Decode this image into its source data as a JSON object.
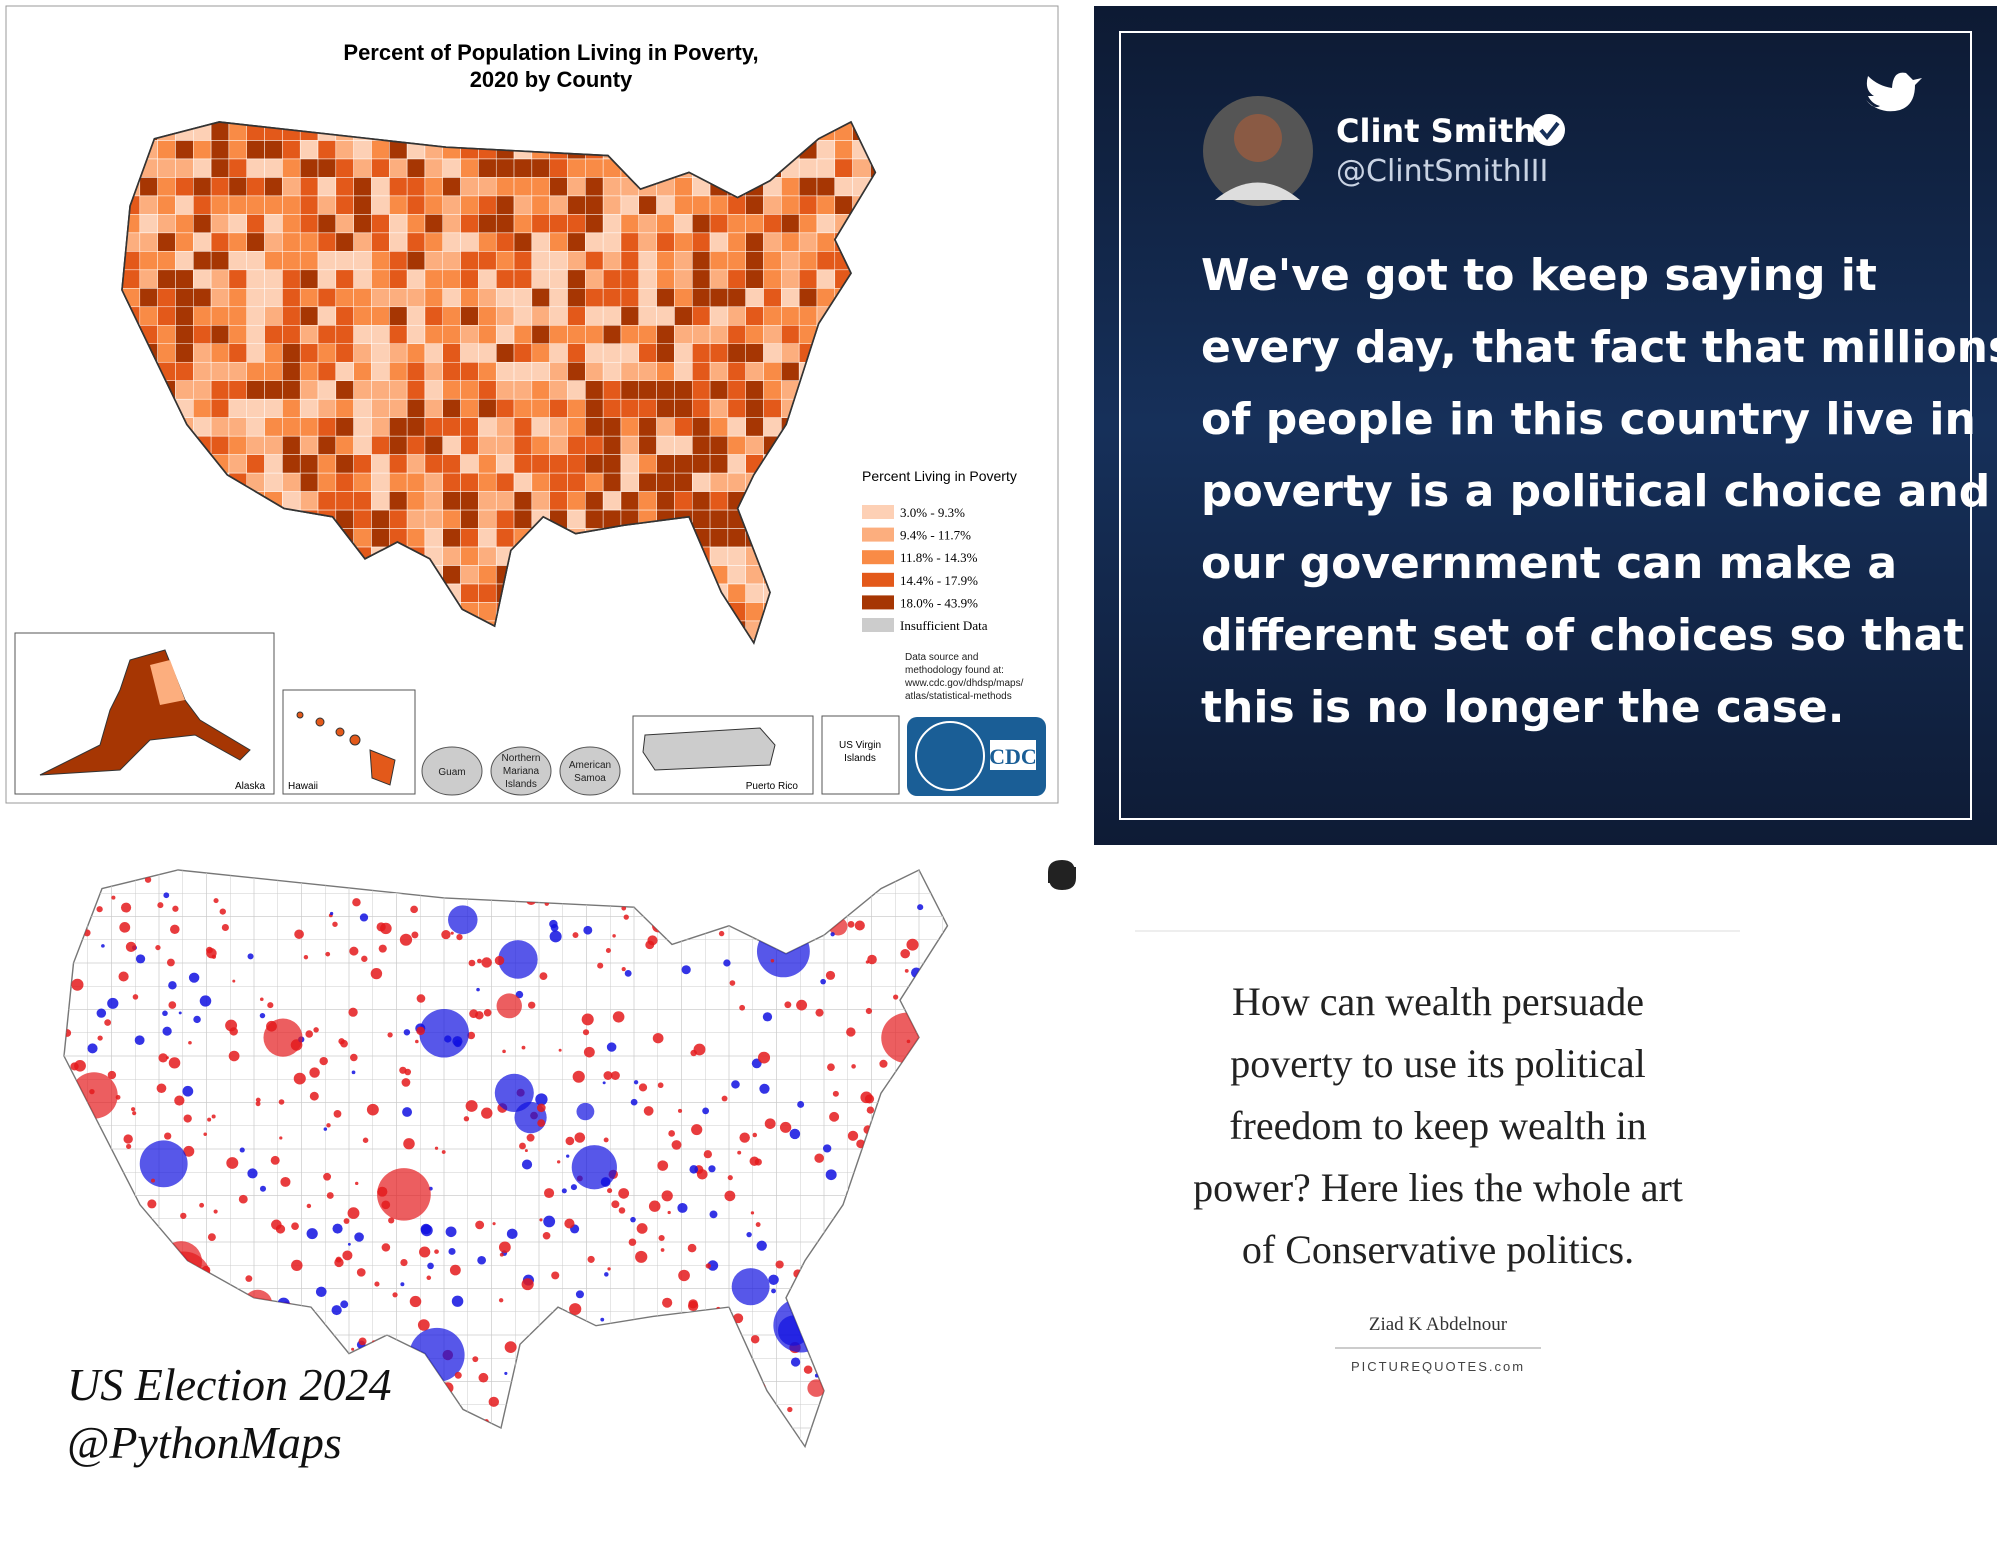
{
  "poverty_map": {
    "title_lines": [
      "Percent of Population Living in Poverty,",
      "2020 by County"
    ],
    "legend_title": "Percent Living in Poverty",
    "legend": [
      {
        "label": "3.0% - 9.3%",
        "color": "#fdd0b5"
      },
      {
        "label": "9.4% - 11.7%",
        "color": "#fcae7e"
      },
      {
        "label": "11.8% - 14.3%",
        "color": "#f98b46"
      },
      {
        "label": "14.4% - 17.9%",
        "color": "#e3591a"
      },
      {
        "label": "18.0% - 43.9%",
        "color": "#a63603"
      },
      {
        "label": "Insufficient Data",
        "color": "#cccccc"
      }
    ],
    "source_lines": [
      "Data source and",
      "methodology found at:",
      "www.cdc.gov/dhdsp/maps/",
      "atlas/statistical-methods"
    ],
    "insets": {
      "alaska": "Alaska",
      "hawaii": "Hawaii",
      "guam": "Guam",
      "nmi": [
        "Northern",
        "Mariana",
        "Islands"
      ],
      "samoa": [
        "American",
        "Samoa"
      ],
      "puerto_rico": "Puerto Rico",
      "usvi": [
        "US Virgin",
        "Islands"
      ]
    },
    "logo": "CDC"
  },
  "tweet": {
    "name": "Clint Smith",
    "handle": "@ClintSmithIII",
    "lines": [
      "We've got to keep saying it",
      "every day, that fact that millions",
      "of people in this country live in",
      "poverty is a political choice and",
      "our government can make a",
      "different set of choices so that",
      "this is no longer the case."
    ]
  },
  "election_map": {
    "caption_lines": [
      "US Election 2024",
      "@PythonMaps"
    ]
  },
  "quote": {
    "lines": [
      "How can wealth persuade",
      "poverty to use its political",
      "freedom to keep wealth in",
      "power? Here lies the whole art",
      "of Conservative politics."
    ],
    "author": "Ziad K Abdelnour",
    "source": "PICTUREQUOTES.com"
  }
}
